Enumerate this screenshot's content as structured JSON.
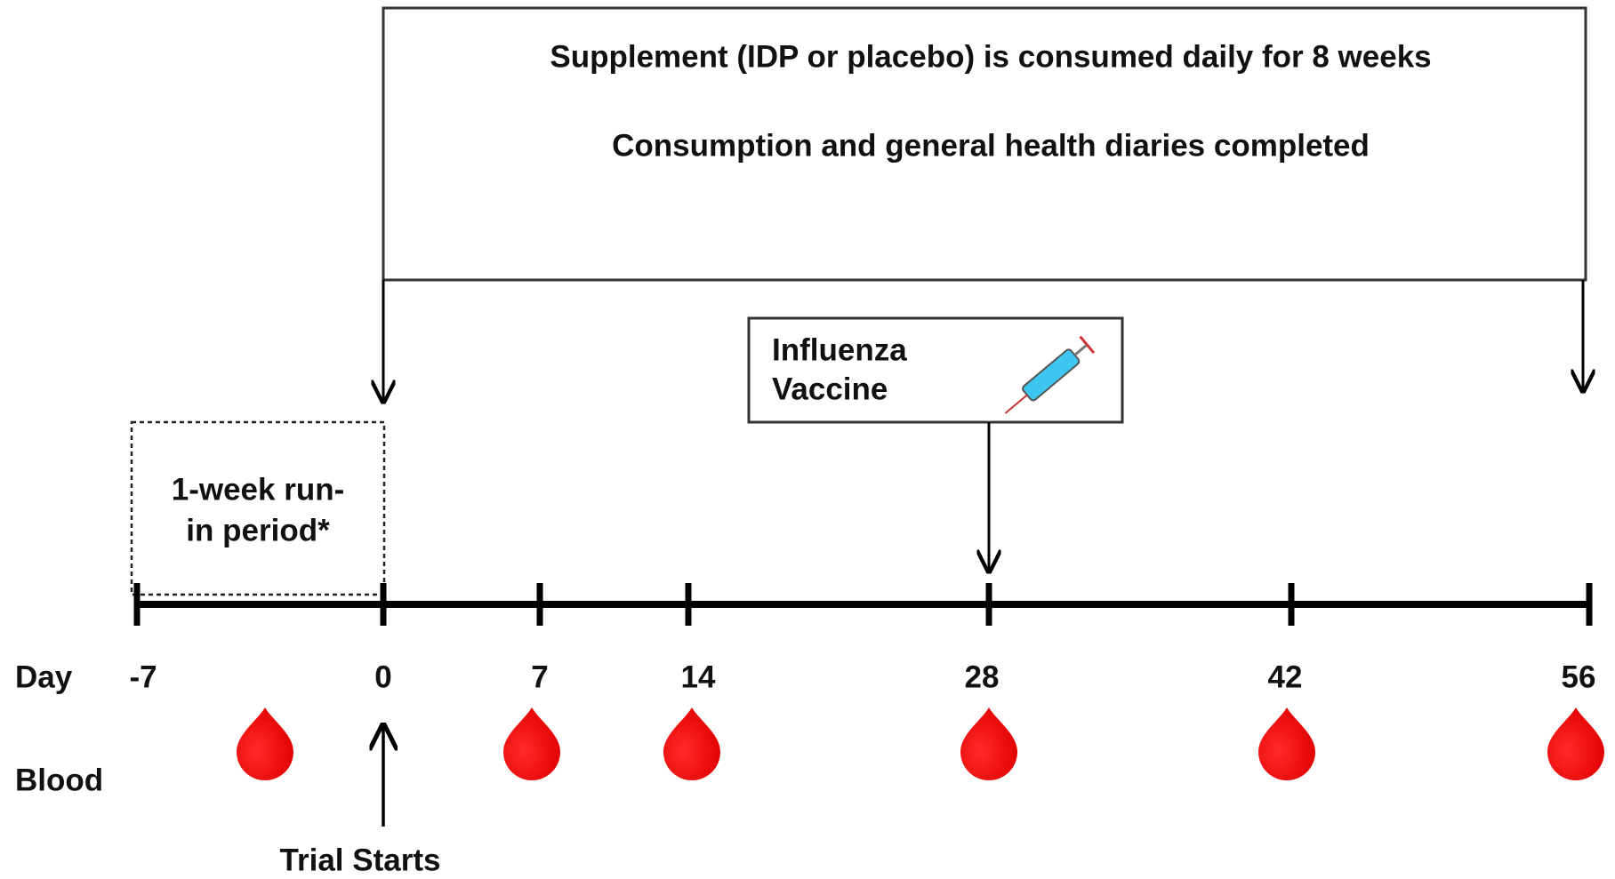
{
  "box": {
    "lines": [
      "Supplement (IDP or placebo) is consumed daily for 8 weeks",
      "Consumption and general health diaries completed"
    ]
  },
  "vaccine": {
    "lines": [
      "Influenza",
      "Vaccine"
    ]
  },
  "run_in": {
    "lines": [
      "1-week run-",
      "in period*"
    ]
  },
  "day_label": "Day",
  "days": [
    -7,
    0,
    7,
    14,
    28,
    42,
    56
  ],
  "blood_label": "Blood",
  "trial_start": "Trial Starts"
}
